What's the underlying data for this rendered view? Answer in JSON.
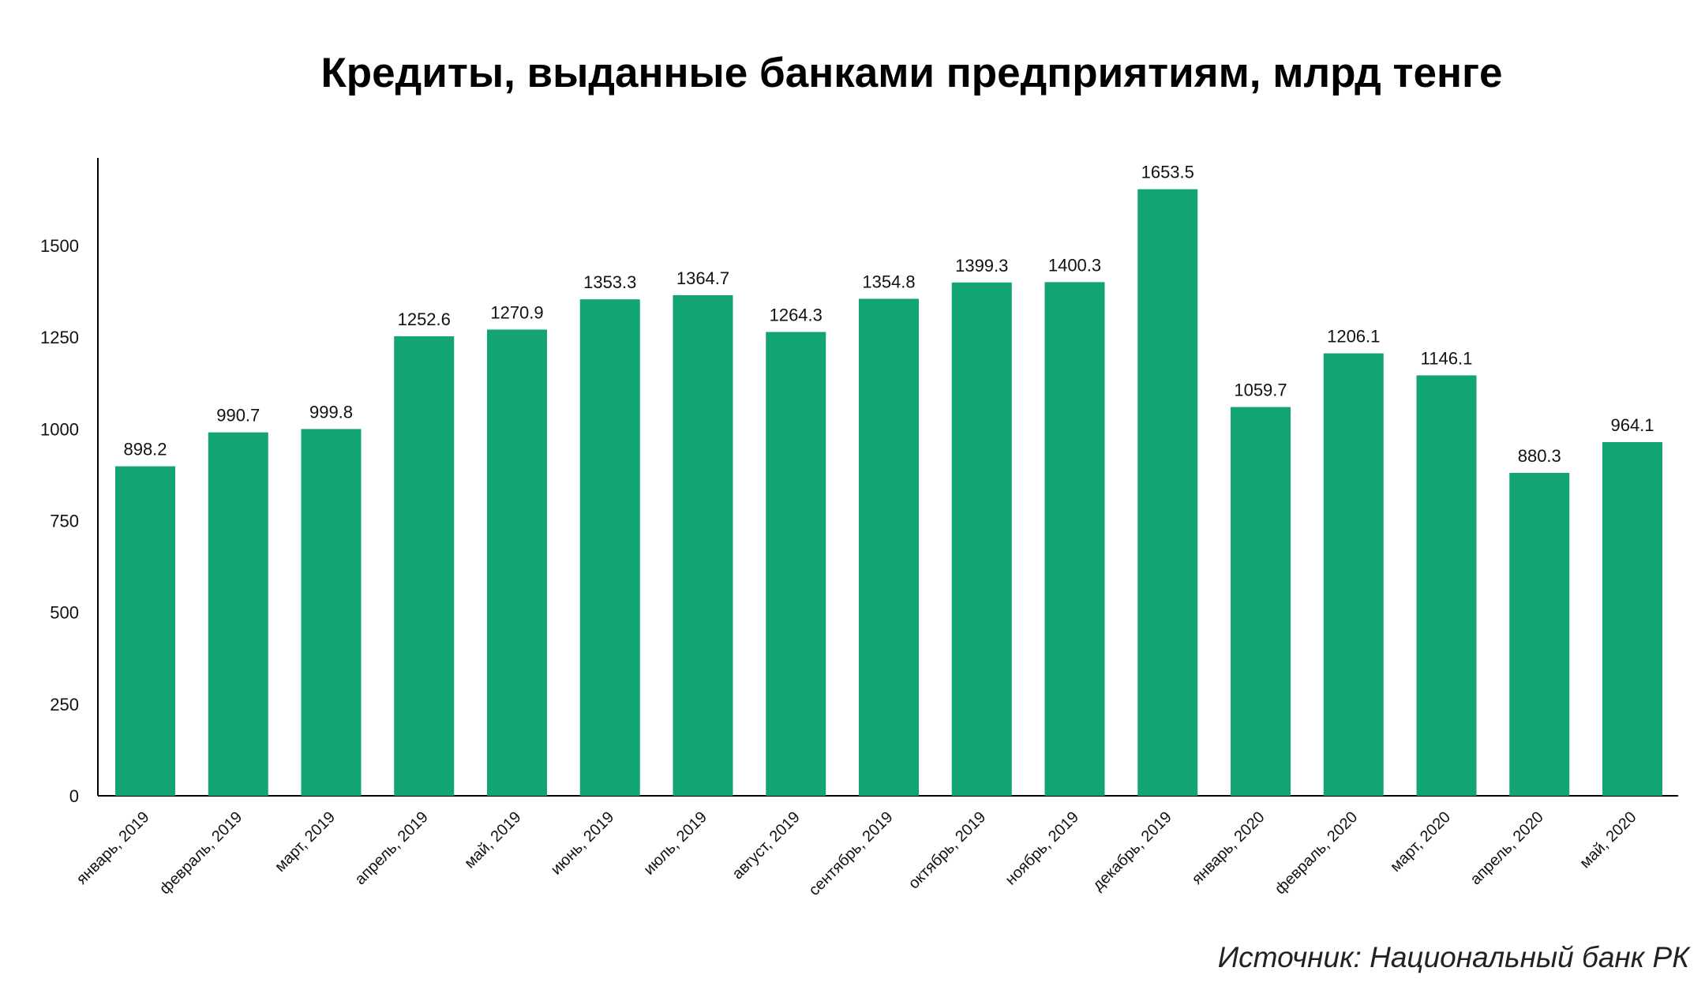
{
  "chart_data": {
    "type": "bar",
    "title": "Кредиты, выданные банками предприятиям, млрд тенге",
    "xlabel": "",
    "ylabel": "",
    "ylim": [
      0,
      1750
    ],
    "yticks": [
      0,
      250,
      500,
      750,
      1000,
      1250,
      1500
    ],
    "grid": false,
    "bar_color": "#12a474",
    "categories": [
      "январь, 2019",
      "февраль, 2019",
      "март, 2019",
      "апрель, 2019",
      "май, 2019",
      "июнь, 2019",
      "июль, 2019",
      "август, 2019",
      "сентябрь, 2019",
      "октябрь, 2019",
      "ноябрь, 2019",
      "декабрь, 2019",
      "январь, 2020",
      "февраль, 2020",
      "март, 2020",
      "апрель, 2020",
      "май, 2020"
    ],
    "values": [
      898.2,
      990.7,
      999.8,
      1252.6,
      1270.9,
      1353.3,
      1364.7,
      1264.3,
      1354.8,
      1399.3,
      1400.3,
      1653.5,
      1059.7,
      1206.1,
      1146.1,
      880.3,
      964.1
    ],
    "value_labels": [
      "898.2",
      "990.7",
      "999.8",
      "1252.6",
      "1270.9",
      "1353.3",
      "1364.7",
      "1264.3",
      "1354.8",
      "1399.3",
      "1400.3",
      "1653.5",
      "1059.7",
      "1206.1",
      "1146.1",
      "880.3",
      "964.1"
    ],
    "source": "Источник: Национальный банк РК"
  }
}
